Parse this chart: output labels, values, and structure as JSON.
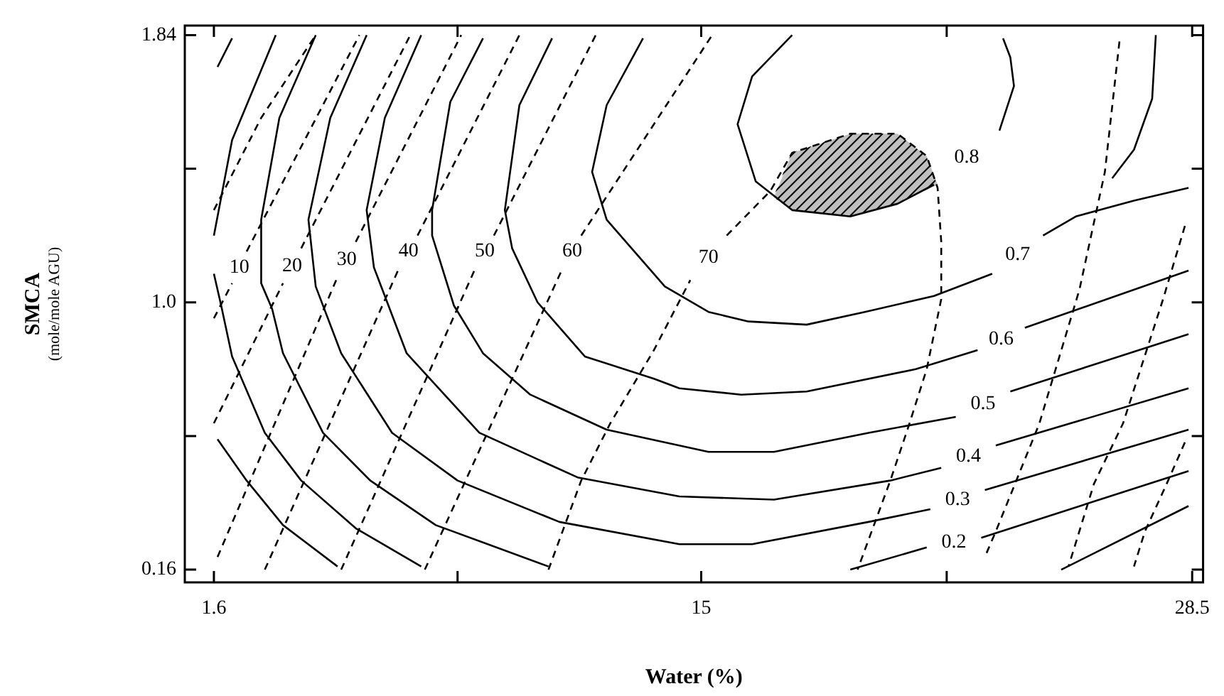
{
  "chart_data": {
    "type": "line",
    "xlabel": "Water (%)",
    "ylabel": "SMCA\n(mole/mole AGU)",
    "xlim": [
      0.8,
      28.8
    ],
    "ylim": [
      0.12,
      1.87
    ],
    "xticks": [
      1.6,
      {
        "value": 8.3,
        "label": null
      },
      15,
      {
        "value": 21.75,
        "label": null
      },
      28.5
    ],
    "yticks": [
      0.16,
      {
        "value": 0.58,
        "label": null
      },
      {
        "value": 1,
        "label": "1.0"
      },
      {
        "value": 1.42,
        "label": null
      },
      1.84
    ],
    "marker": "none",
    "series": [
      {
        "color": "#000000",
        "line_style": "solid",
        "x": [
          1.7,
          2.1,
          null,
          1.7,
          2.5,
          3.5,
          5.0
        ],
        "values": [
          1.74,
          1.83,
          null,
          0.57,
          0.44,
          0.3,
          0.17
        ]
      },
      {
        "color": "#000000",
        "line_style": "solid",
        "x": [
          3.3,
          2.1,
          1.6,
          null,
          1.6,
          1.8,
          2.1,
          3.0,
          4.0,
          5.5,
          7.3,
          null,
          24.9,
          28.4
        ],
        "values": [
          1.84,
          1.51,
          1.21,
          null,
          1.09,
          0.99,
          0.83,
          0.59,
          0.44,
          0.29,
          0.17,
          null,
          0.16,
          0.36
        ]
      },
      {
        "name": "0.2",
        "color": "#000000",
        "line_style": "solid",
        "x": [
          4.4,
          3.4,
          2.9,
          2.9,
          3.2,
          3.5,
          4.6,
          5.9,
          7.7,
          10.8,
          null,
          19.1,
          21.2,
          null,
          22.7,
          28.4
        ],
        "values": [
          1.84,
          1.58,
          1.26,
          1.06,
          0.98,
          0.84,
          0.59,
          0.44,
          0.3,
          0.17,
          null,
          0.16,
          0.23,
          null,
          0.26,
          0.47
        ]
      },
      {
        "name": "0.3",
        "color": "#000000",
        "line_style": "solid",
        "x": [
          5.8,
          4.8,
          4.2,
          4.4,
          5.1,
          6.5,
          8.3,
          11.1,
          14.4,
          16.4,
          19.6,
          21.3,
          null,
          22.8,
          28.4
        ],
        "values": [
          1.84,
          1.58,
          1.26,
          1.05,
          0.84,
          0.59,
          0.44,
          0.31,
          0.24,
          0.24,
          0.31,
          0.35,
          null,
          0.41,
          0.6
        ]
      },
      {
        "name": "0.4",
        "color": "#000000",
        "line_style": "solid",
        "x": [
          7.3,
          6.3,
          5.8,
          6.0,
          6.9,
          8.9,
          11.6,
          14.4,
          17.0,
          20.2,
          21.6,
          null,
          23.1,
          28.4
        ],
        "values": [
          1.84,
          1.58,
          1.29,
          1.11,
          0.84,
          0.59,
          0.45,
          0.39,
          0.38,
          0.44,
          0.48,
          null,
          0.55,
          0.73
        ]
      },
      {
        "name": "0.5",
        "color": "#000000",
        "line_style": "solid",
        "x": [
          9.0,
          8.1,
          7.6,
          7.6,
          8.2,
          9.0,
          10.3,
          12.4,
          15.2,
          17.0,
          19.6,
          22.0,
          null,
          23.5,
          28.4
        ],
        "values": [
          1.83,
          1.63,
          1.29,
          1.21,
          0.99,
          0.84,
          0.71,
          0.6,
          0.53,
          0.53,
          0.59,
          0.64,
          null,
          0.72,
          0.9
        ]
      },
      {
        "name": "0.6",
        "color": "#000000",
        "line_style": "solid",
        "x": [
          10.9,
          10.0,
          9.6,
          9.8,
          10.5,
          11.8,
          13.7,
          14.4,
          16.1,
          17.9,
          20.9,
          22.6,
          null,
          23.9,
          28.4
        ],
        "values": [
          1.83,
          1.62,
          1.29,
          1.17,
          1.0,
          0.83,
          0.76,
          0.73,
          0.71,
          0.72,
          0.79,
          0.85,
          null,
          0.92,
          1.1
        ]
      },
      {
        "name": "0.7",
        "color": "#000000",
        "line_style": "solid",
        "x": [
          13.4,
          12.4,
          12.0,
          12.4,
          14.0,
          15.2,
          16.3,
          17.9,
          19.5,
          21.4,
          23.0,
          null,
          24.4,
          25.3,
          26.9,
          28.4
        ],
        "values": [
          1.83,
          1.62,
          1.41,
          1.26,
          1.05,
          0.97,
          0.94,
          0.93,
          0.97,
          1.02,
          1.09,
          null,
          1.21,
          1.27,
          1.32,
          1.36
        ]
      },
      {
        "color": "#000000",
        "line_style": "solid",
        "x": [
          27.5,
          27.4,
          26.9,
          26.3
        ],
        "values": [
          1.84,
          1.64,
          1.48,
          1.39
        ]
      },
      {
        "name": "0.8",
        "color": "#000000",
        "line_style": "solid",
        "x": [
          17.5,
          16.4,
          16.0,
          16.5,
          17.5,
          19.1,
          20.4,
          21.4,
          null,
          23.2,
          23.6,
          23.5,
          23.3
        ],
        "values": [
          1.84,
          1.71,
          1.56,
          1.38,
          1.29,
          1.27,
          1.31,
          1.37,
          null,
          1.54,
          1.68,
          1.77,
          1.83
        ]
      },
      {
        "color": "#000000",
        "line_style": "dashed",
        "x": [
          1.6,
          2.9,
          4.4
        ],
        "values": [
          1.29,
          1.58,
          1.84
        ]
      },
      {
        "name": "10",
        "color": "#000000",
        "line_style": "dashed",
        "x": [
          1.6,
          2.1,
          null,
          2.5,
          5.6
        ],
        "values": [
          0.95,
          1.06,
          null,
          1.16,
          1.84
        ]
      },
      {
        "name": "20",
        "color": "#000000",
        "line_style": "dashed",
        "x": [
          1.6,
          3.5,
          null,
          4.0,
          7.0
        ],
        "values": [
          0.62,
          1.06,
          null,
          1.17,
          1.84
        ]
      },
      {
        "name": "30",
        "color": "#000000",
        "line_style": "dashed",
        "x": [
          1.7,
          5.0,
          null,
          5.5,
          8.4
        ],
        "values": [
          0.2,
          1.08,
          null,
          1.19,
          1.84
        ]
      },
      {
        "name": "40",
        "color": "#000000",
        "line_style": "dashed",
        "x": [
          3.0,
          6.7,
          null,
          7.2,
          10.0
        ],
        "values": [
          0.16,
          1.11,
          null,
          1.21,
          1.84
        ]
      },
      {
        "name": "50",
        "color": "#000000",
        "line_style": "dashed",
        "x": [
          5.1,
          8.8,
          null,
          9.3,
          12.1
        ],
        "values": [
          0.16,
          1.11,
          null,
          1.21,
          1.84
        ]
      },
      {
        "name": "60",
        "color": "#000000",
        "line_style": "dashed",
        "x": [
          7.4,
          11.2,
          null,
          11.7,
          15.3
        ],
        "values": [
          0.16,
          1.11,
          null,
          1.21,
          1.84
        ]
      },
      {
        "name": "70",
        "color": "#000000",
        "line_style": "dashed",
        "x": [
          10.8,
          11.7,
          12.5,
          13.7,
          14.7,
          null,
          15.7,
          16.9,
          17.5,
          19.1,
          20.4,
          21.2,
          21.5,
          21.6,
          21.6,
          21.2,
          20.7,
          20.2,
          19.3
        ],
        "values": [
          0.16,
          0.44,
          0.62,
          0.85,
          1.07,
          null,
          1.21,
          1.35,
          1.47,
          1.53,
          1.53,
          1.46,
          1.36,
          1.19,
          1.01,
          0.79,
          0.61,
          0.44,
          0.16
        ]
      },
      {
        "color": "#000000",
        "line_style": "dashed",
        "x": [
          26.5,
          26.1,
          25.4,
          24.3,
          23.1,
          22.8
        ],
        "values": [
          1.82,
          1.41,
          1.04,
          0.62,
          0.28,
          0.2
        ]
      },
      {
        "color": "#000000",
        "line_style": "dashed",
        "x": [
          28.3,
          27.7,
          26.6,
          25.8,
          25.1
        ],
        "values": [
          1.24,
          1.01,
          0.62,
          0.43,
          0.17
        ]
      },
      {
        "color": "#000000",
        "line_style": "dashed",
        "x": [
          28.3,
          27.8,
          27.2,
          26.9
        ],
        "values": [
          0.56,
          0.43,
          0.28,
          0.17
        ]
      },
      {
        "type": "area",
        "color": "#000000",
        "x": [
          17.0,
          17.5,
          19.1,
          20.4,
          21.2,
          21.5,
          20.4,
          19.1,
          17.5,
          17.0
        ],
        "values": [
          1.33,
          1.47,
          1.53,
          1.53,
          1.46,
          1.37,
          1.31,
          1.27,
          1.29,
          1.33
        ]
      }
    ]
  }
}
